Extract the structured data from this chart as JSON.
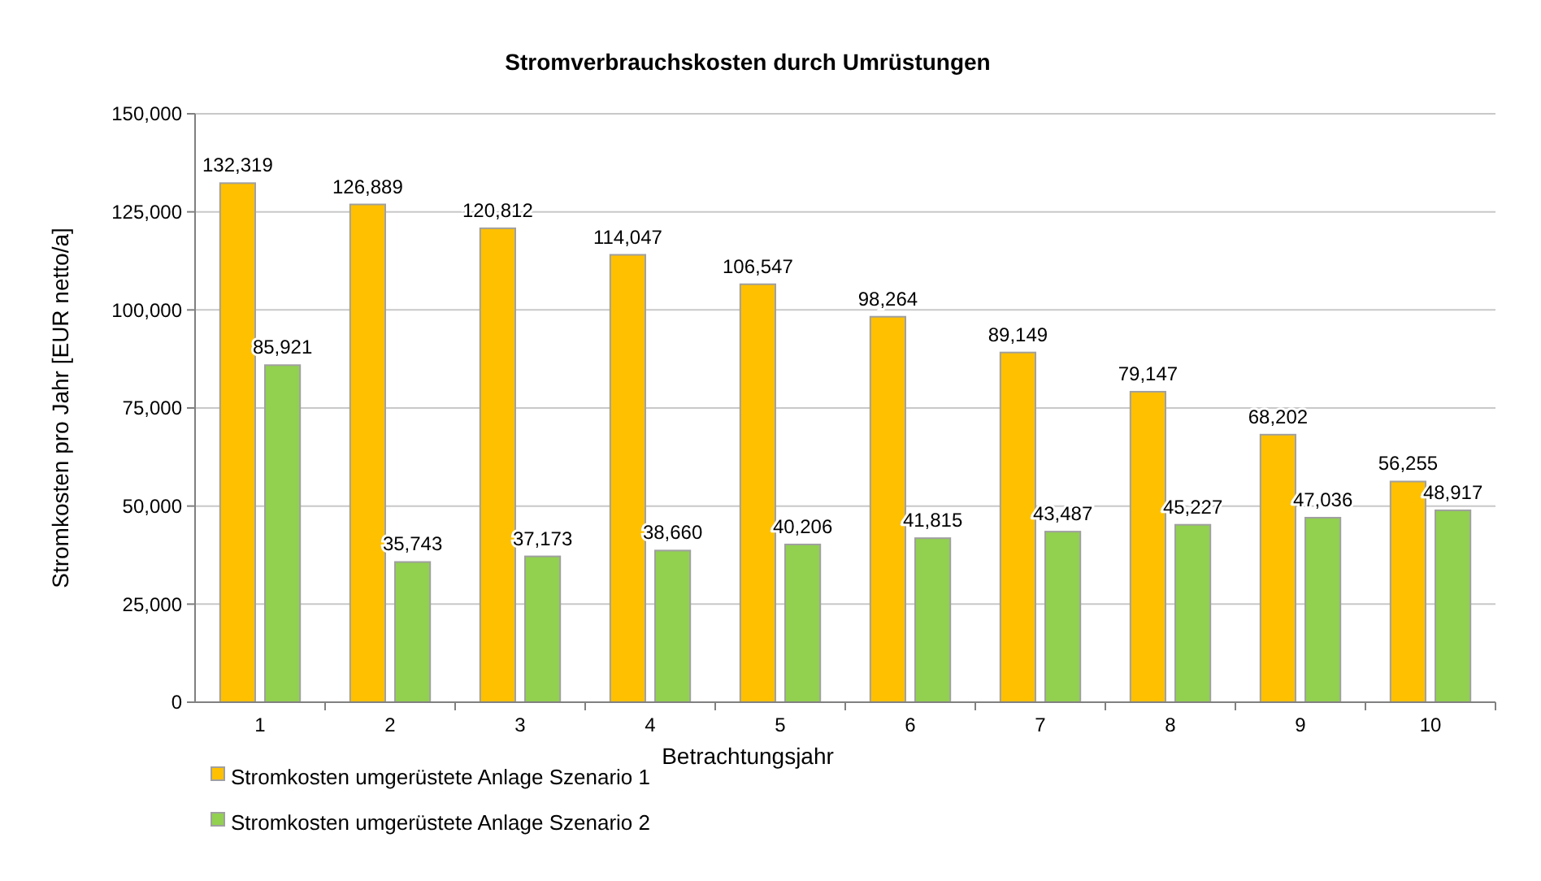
{
  "chart_data": {
    "type": "bar",
    "title": "Stromverbrauchskosten durch Umrüstungen",
    "xlabel": "Betrachtungsjahr",
    "ylabel": "Stromkosten pro Jahr [EUR netto/a]",
    "categories": [
      "1",
      "2",
      "3",
      "4",
      "5",
      "6",
      "7",
      "8",
      "9",
      "10"
    ],
    "series": [
      {
        "name": "Stromkosten umgerüstete Anlage Szenario 1",
        "color": "#ffc000",
        "values": [
          132319,
          126889,
          120812,
          114047,
          106547,
          98264,
          89149,
          79147,
          68202,
          56255
        ],
        "value_labels": [
          "132,319",
          "126,889",
          "120,812",
          "114,047",
          "106,547",
          "98,264",
          "89,149",
          "79,147",
          "68,202",
          "56,255"
        ]
      },
      {
        "name": "Stromkosten umgerüstete Anlage Szenario 2",
        "color": "#92d050",
        "values": [
          85921,
          35743,
          37173,
          38660,
          40206,
          41815,
          43487,
          45227,
          47036,
          48917
        ],
        "value_labels": [
          "85,921",
          "35,743",
          "37,173",
          "38,660",
          "40,206",
          "41,815",
          "43,487",
          "45,227",
          "47,036",
          "48,917"
        ]
      }
    ],
    "ylim": [
      0,
      150000
    ],
    "yticks": [
      {
        "value": 0,
        "label": "0"
      },
      {
        "value": 25000,
        "label": "25,000"
      },
      {
        "value": 50000,
        "label": "50,000"
      },
      {
        "value": 75000,
        "label": "75,000"
      },
      {
        "value": 100000,
        "label": "100,000"
      },
      {
        "value": 125000,
        "label": "125,000"
      },
      {
        "value": 150000,
        "label": "150,000"
      }
    ],
    "grid": "y",
    "legend": "bottom left"
  }
}
